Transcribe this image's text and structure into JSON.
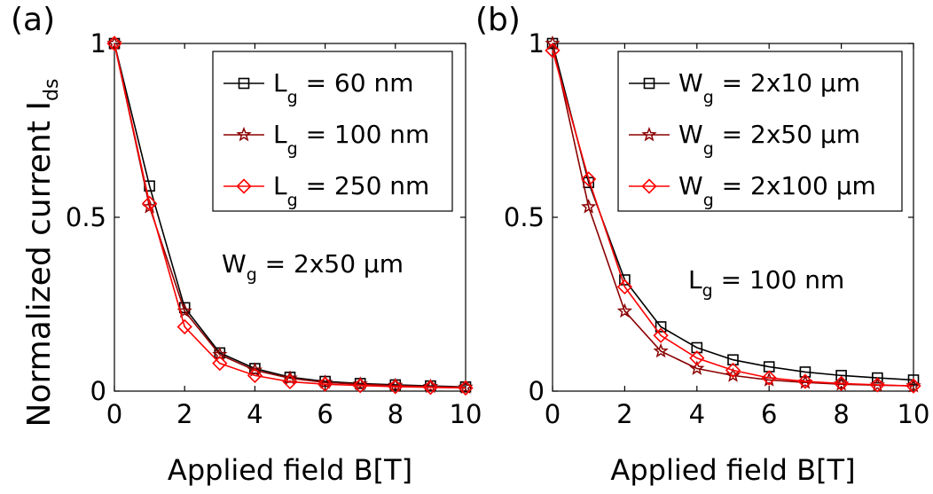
{
  "figure": {
    "ylabel_main": "Normalized current I",
    "ylabel_sub": "ds"
  },
  "chart_data": [
    {
      "type": "line",
      "panel_label": "(a)",
      "xlabel": "Applied field B[T]",
      "xlim": [
        0,
        10
      ],
      "ylim": [
        0,
        1
      ],
      "xticks": [
        "0",
        "2",
        "4",
        "6",
        "8",
        "10"
      ],
      "yticks": [
        "0",
        "0.5",
        "1"
      ],
      "x": [
        0,
        1,
        2,
        3,
        4,
        5,
        6,
        7,
        8,
        9,
        10
      ],
      "series": [
        {
          "label_main": "L",
          "label_sub": "g",
          "label_rest": " = 60 nm",
          "marker": "square",
          "color": "#000000",
          "values": [
            1.0,
            0.59,
            0.24,
            0.11,
            0.065,
            0.04,
            0.028,
            0.022,
            0.018,
            0.015,
            0.012
          ]
        },
        {
          "label_main": "L",
          "label_sub": "g",
          "label_rest": " = 100 nm",
          "marker": "star",
          "color": "#8b0000",
          "values": [
            1.0,
            0.53,
            0.23,
            0.105,
            0.06,
            0.037,
            0.025,
            0.02,
            0.016,
            0.013,
            0.011
          ]
        },
        {
          "label_main": "L",
          "label_sub": "g",
          "label_rest": " = 250 nm",
          "marker": "diamond",
          "color": "#ff0000",
          "values": [
            1.0,
            0.54,
            0.185,
            0.08,
            0.045,
            0.027,
            0.02,
            0.016,
            0.013,
            0.011,
            0.009
          ]
        }
      ],
      "annotation": {
        "main": "W",
        "sub": "g",
        "rest": " = 2x50 μm"
      },
      "legend_position": "top-right",
      "grid": false
    },
    {
      "type": "line",
      "panel_label": "(b)",
      "xlabel": "Applied field B[T]",
      "xlim": [
        0,
        10
      ],
      "ylim": [
        0,
        1
      ],
      "xticks": [
        "0",
        "2",
        "4",
        "6",
        "8",
        "10"
      ],
      "yticks": [
        "0",
        "0.5",
        "1"
      ],
      "x": [
        0,
        1,
        2,
        3,
        4,
        5,
        6,
        7,
        8,
        9,
        10
      ],
      "series": [
        {
          "label_main": "W",
          "label_sub": "g",
          "label_rest": " = 2x10 μm",
          "marker": "square",
          "color": "#000000",
          "values": [
            1.0,
            0.6,
            0.32,
            0.185,
            0.125,
            0.09,
            0.07,
            0.055,
            0.045,
            0.038,
            0.032
          ]
        },
        {
          "label_main": "W",
          "label_sub": "g",
          "label_rest": " = 2x50 μm",
          "marker": "star",
          "color": "#8b0000",
          "values": [
            1.0,
            0.53,
            0.23,
            0.115,
            0.065,
            0.045,
            0.032,
            0.025,
            0.02,
            0.017,
            0.015
          ]
        },
        {
          "label_main": "W",
          "label_sub": "g",
          "label_rest": " = 2x100 μm",
          "marker": "diamond",
          "color": "#ff0000",
          "values": [
            0.98,
            0.61,
            0.3,
            0.16,
            0.095,
            0.06,
            0.038,
            0.028,
            0.022,
            0.018,
            0.015
          ]
        }
      ],
      "annotation": {
        "main": "L",
        "sub": "g",
        "rest": " = 100 nm"
      },
      "legend_position": "top-right",
      "grid": false
    }
  ]
}
